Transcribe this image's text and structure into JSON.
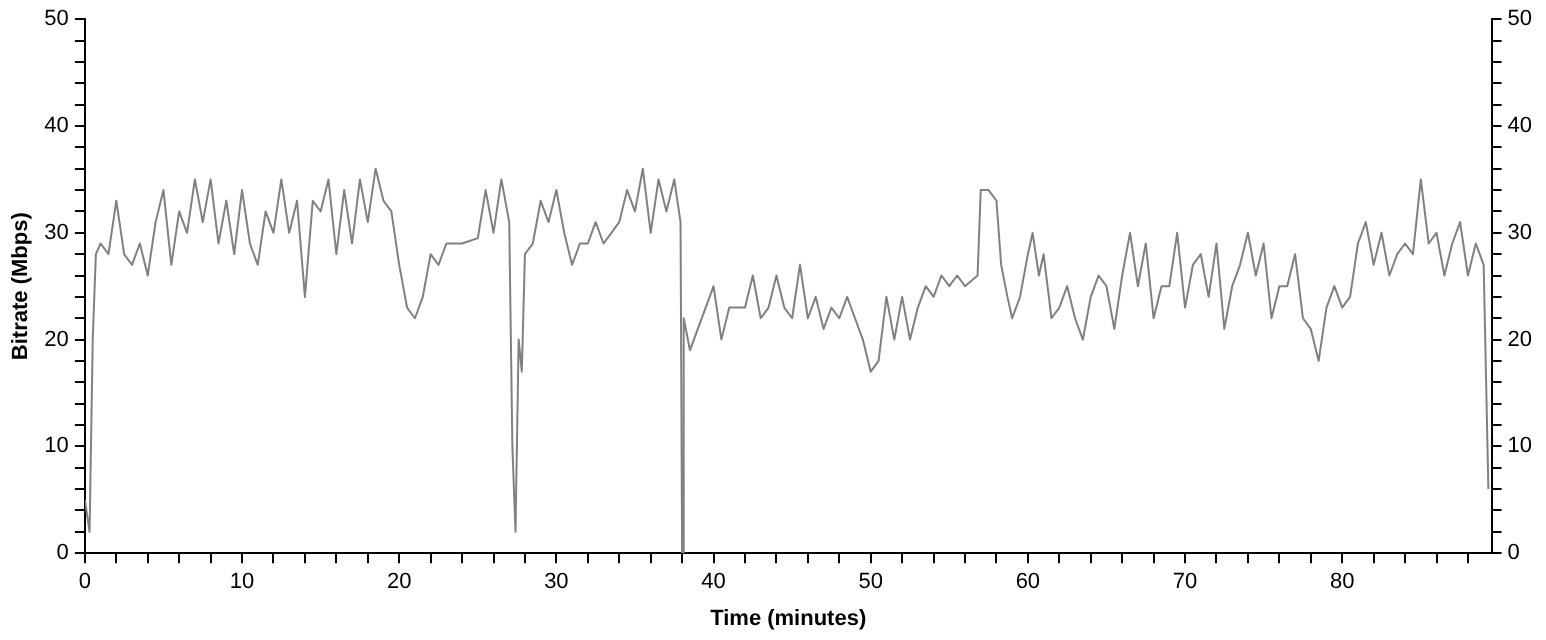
{
  "chart_data": {
    "type": "line",
    "xlabel": "Time (minutes)",
    "ylabel": "Bitrate (Mbps)",
    "xlim": [
      0,
      89.5
    ],
    "ylim": [
      0,
      50
    ],
    "y2lim": [
      0,
      50
    ],
    "xticks": [
      0,
      {
        "value": 2,
        "label": null
      },
      {
        "value": 4,
        "label": null
      },
      {
        "value": 6,
        "label": null
      },
      {
        "value": 8,
        "label": null
      },
      10,
      {
        "value": 12,
        "label": null
      },
      {
        "value": 14,
        "label": null
      },
      {
        "value": 16,
        "label": null
      },
      {
        "value": 18,
        "label": null
      },
      20,
      {
        "value": 22,
        "label": null
      },
      {
        "value": 24,
        "label": null
      },
      {
        "value": 26,
        "label": null
      },
      {
        "value": 28,
        "label": null
      },
      30,
      {
        "value": 32,
        "label": null
      },
      {
        "value": 34,
        "label": null
      },
      {
        "value": 36,
        "label": null
      },
      {
        "value": 38,
        "label": null
      },
      40,
      {
        "value": 42,
        "label": null
      },
      {
        "value": 44,
        "label": null
      },
      {
        "value": 46,
        "label": null
      },
      {
        "value": 48,
        "label": null
      },
      50,
      {
        "value": 52,
        "label": null
      },
      {
        "value": 54,
        "label": null
      },
      {
        "value": 56,
        "label": null
      },
      {
        "value": 58,
        "label": null
      },
      60,
      {
        "value": 62,
        "label": null
      },
      {
        "value": 64,
        "label": null
      },
      {
        "value": 66,
        "label": null
      },
      {
        "value": 68,
        "label": null
      },
      70,
      {
        "value": 72,
        "label": null
      },
      {
        "value": 74,
        "label": null
      },
      {
        "value": 76,
        "label": null
      },
      {
        "value": 78,
        "label": null
      },
      80,
      {
        "value": 82,
        "label": null
      },
      {
        "value": 84,
        "label": null
      },
      {
        "value": 86,
        "label": null
      },
      {
        "value": 88,
        "label": null
      }
    ],
    "yticks": [
      0,
      {
        "value": 2,
        "label": null
      },
      {
        "value": 4,
        "label": null
      },
      {
        "value": 6,
        "label": null
      },
      {
        "value": 8,
        "label": null
      },
      10,
      {
        "value": 12,
        "label": null
      },
      {
        "value": 14,
        "label": null
      },
      {
        "value": 16,
        "label": null
      },
      {
        "value": 18,
        "label": null
      },
      20,
      {
        "value": 22,
        "label": null
      },
      {
        "value": 24,
        "label": null
      },
      {
        "value": 26,
        "label": null
      },
      {
        "value": 28,
        "label": null
      },
      30,
      {
        "value": 32,
        "label": null
      },
      {
        "value": 34,
        "label": null
      },
      {
        "value": 36,
        "label": null
      },
      {
        "value": 38,
        "label": null
      },
      40,
      {
        "value": 42,
        "label": null
      },
      {
        "value": 44,
        "label": null
      },
      {
        "value": 46,
        "label": null
      },
      {
        "value": 48,
        "label": null
      },
      50
    ],
    "y2ticks": [
      0,
      {
        "value": 2,
        "label": null
      },
      {
        "value": 4,
        "label": null
      },
      {
        "value": 6,
        "label": null
      },
      {
        "value": 8,
        "label": null
      },
      10,
      {
        "value": 12,
        "label": null
      },
      {
        "value": 14,
        "label": null
      },
      {
        "value": 16,
        "label": null
      },
      {
        "value": 18,
        "label": null
      },
      20,
      {
        "value": 22,
        "label": null
      },
      {
        "value": 24,
        "label": null
      },
      {
        "value": 26,
        "label": null
      },
      {
        "value": 28,
        "label": null
      },
      30,
      {
        "value": 32,
        "label": null
      },
      {
        "value": 34,
        "label": null
      },
      {
        "value": 36,
        "label": null
      },
      {
        "value": 38,
        "label": null
      },
      40,
      {
        "value": 42,
        "label": null
      },
      {
        "value": 44,
        "label": null
      },
      {
        "value": 46,
        "label": null
      },
      {
        "value": 48,
        "label": null
      },
      50
    ],
    "grid": false,
    "legend": false,
    "marker": "none",
    "line_style": "solid",
    "x": [
      0,
      0.3,
      0.5,
      0.7,
      1,
      1.5,
      2,
      2.5,
      3,
      3.5,
      4,
      4.5,
      5,
      5.5,
      6,
      6.5,
      7,
      7.5,
      8,
      8.5,
      9,
      9.5,
      10,
      10.5,
      11,
      11.5,
      12,
      12.5,
      13,
      13.5,
      14,
      14.5,
      15,
      15.5,
      16,
      16.5,
      17,
      17.5,
      18,
      18.5,
      19,
      19.5,
      20,
      20.5,
      21,
      21.5,
      22,
      22.5,
      23,
      24,
      25,
      25.5,
      26,
      26.5,
      27,
      27.2,
      27.4,
      27.6,
      27.8,
      28,
      28.5,
      29,
      29.5,
      30,
      30.5,
      31,
      31.5,
      32,
      32.5,
      33,
      33.5,
      34,
      34.5,
      35,
      35.5,
      36,
      36.5,
      37,
      37.5,
      37.9,
      38,
      38.1,
      38.5,
      39,
      39.5,
      40,
      40.5,
      41,
      42,
      42.5,
      43,
      43.5,
      44,
      44.5,
      45,
      45.5,
      46,
      46.5,
      47,
      47.5,
      48,
      48.5,
      49,
      49.5,
      50,
      50.5,
      51,
      51.5,
      52,
      52.5,
      53,
      53.5,
      54,
      54.5,
      55,
      55.5,
      56,
      56.8,
      57,
      57.5,
      58,
      58.3,
      58.7,
      59,
      59.5,
      60,
      60.3,
      60.7,
      61,
      61.5,
      62,
      62.5,
      63,
      63.5,
      64,
      64.5,
      65,
      65.5,
      66,
      66.5,
      67,
      67.5,
      68,
      68.5,
      69,
      69.5,
      70,
      70.5,
      71,
      71.5,
      72,
      72.5,
      73,
      73.5,
      74,
      74.5,
      75,
      75.5,
      76,
      76.5,
      77,
      77.5,
      78,
      78.5,
      79,
      79.5,
      80,
      80.5,
      81,
      81.5,
      82,
      82.5,
      83,
      83.5,
      84,
      84.5,
      85,
      85.5,
      86,
      86.5,
      87,
      87.5,
      88,
      88.5,
      89,
      89.3
    ],
    "series": [
      {
        "color": "#808080",
        "values": [
          5,
          2,
          20,
          28,
          29,
          28,
          33,
          28,
          27,
          29,
          26,
          31,
          34,
          27,
          32,
          30,
          35,
          31,
          35,
          29,
          33,
          28,
          34,
          29,
          27,
          32,
          30,
          35,
          30,
          33,
          24,
          33,
          32,
          35,
          28,
          34,
          29,
          35,
          31,
          36,
          33,
          32,
          27,
          23,
          22,
          24,
          28,
          27,
          29,
          29,
          29.5,
          34,
          30,
          35,
          31,
          10,
          2,
          20,
          17,
          28,
          29,
          33,
          31,
          34,
          30,
          27,
          29,
          29,
          31,
          29,
          30,
          31,
          34,
          32,
          36,
          30,
          35,
          32,
          35,
          31,
          0,
          22,
          19,
          21,
          23,
          25,
          20,
          23,
          23,
          26,
          22,
          23,
          26,
          23,
          22,
          27,
          22,
          24,
          21,
          23,
          22,
          24,
          22,
          20,
          17,
          18,
          24,
          20,
          24,
          20,
          23,
          25,
          24,
          26,
          25,
          26,
          25,
          26,
          34,
          34,
          33,
          27,
          24,
          22,
          24,
          28,
          30,
          26,
          28,
          22,
          23,
          25,
          22,
          20,
          24,
          26,
          25,
          21,
          26,
          30,
          25,
          29,
          22,
          25,
          25,
          30,
          23,
          27,
          28,
          24,
          29,
          21,
          25,
          27,
          30,
          26,
          29,
          22,
          25,
          25,
          28,
          22,
          21,
          18,
          23,
          25,
          23,
          24,
          29,
          31,
          27,
          30,
          26,
          28,
          29,
          28,
          35,
          29,
          30,
          26,
          29,
          31,
          26,
          29,
          27,
          6
        ]
      }
    ]
  }
}
